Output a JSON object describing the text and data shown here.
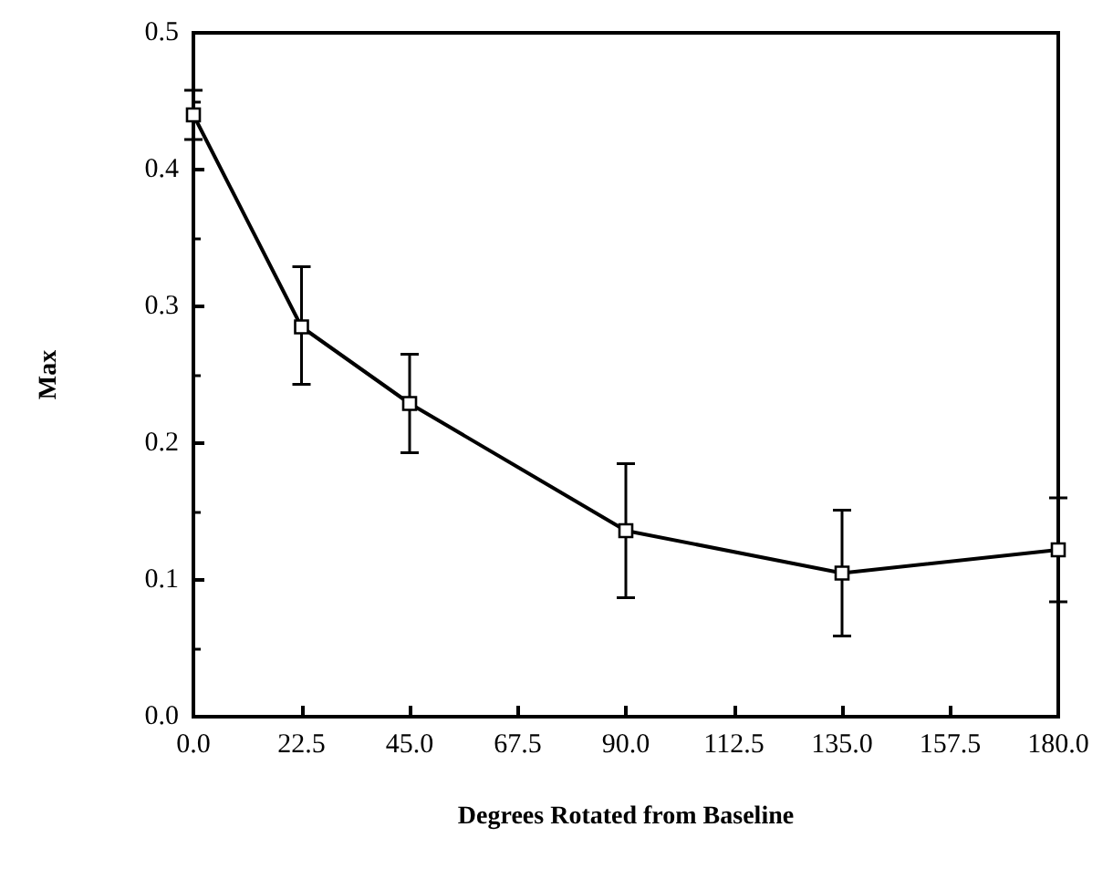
{
  "chart_data": {
    "type": "line",
    "xlabel": "Degrees Rotated from Baseline",
    "ylabel": "Max",
    "x": [
      0,
      22.5,
      45,
      90,
      135,
      180
    ],
    "series": [
      {
        "color": "#000000",
        "values": [
          0.44,
          0.285,
          0.229,
          0.136,
          0.105,
          0.122
        ],
        "errors": [
          0.018,
          [
            0.243,
            0.329
          ],
          [
            0.193,
            0.265
          ],
          [
            0.087,
            0.185
          ],
          [
            0.059,
            0.151
          ],
          [
            0.084,
            0.16
          ]
        ]
      }
    ],
    "xlim": [
      0,
      180
    ],
    "xticks": [
      {
        "value": 0,
        "label": "0.0"
      },
      22.5,
      {
        "value": 45,
        "label": "45.0"
      },
      67.5,
      {
        "value": 90,
        "label": "90.0"
      },
      112.5,
      {
        "value": 135,
        "label": "135.0"
      },
      157.5,
      {
        "value": 180,
        "label": "180.0"
      }
    ],
    "ylim": [
      0,
      0.5
    ],
    "yticks": [
      {
        "value": 0,
        "label": "0.0"
      },
      0.1,
      0.2,
      0.3,
      0.4,
      0.5
    ],
    "grid": false,
    "marker": "square",
    "line_style": "solid"
  }
}
